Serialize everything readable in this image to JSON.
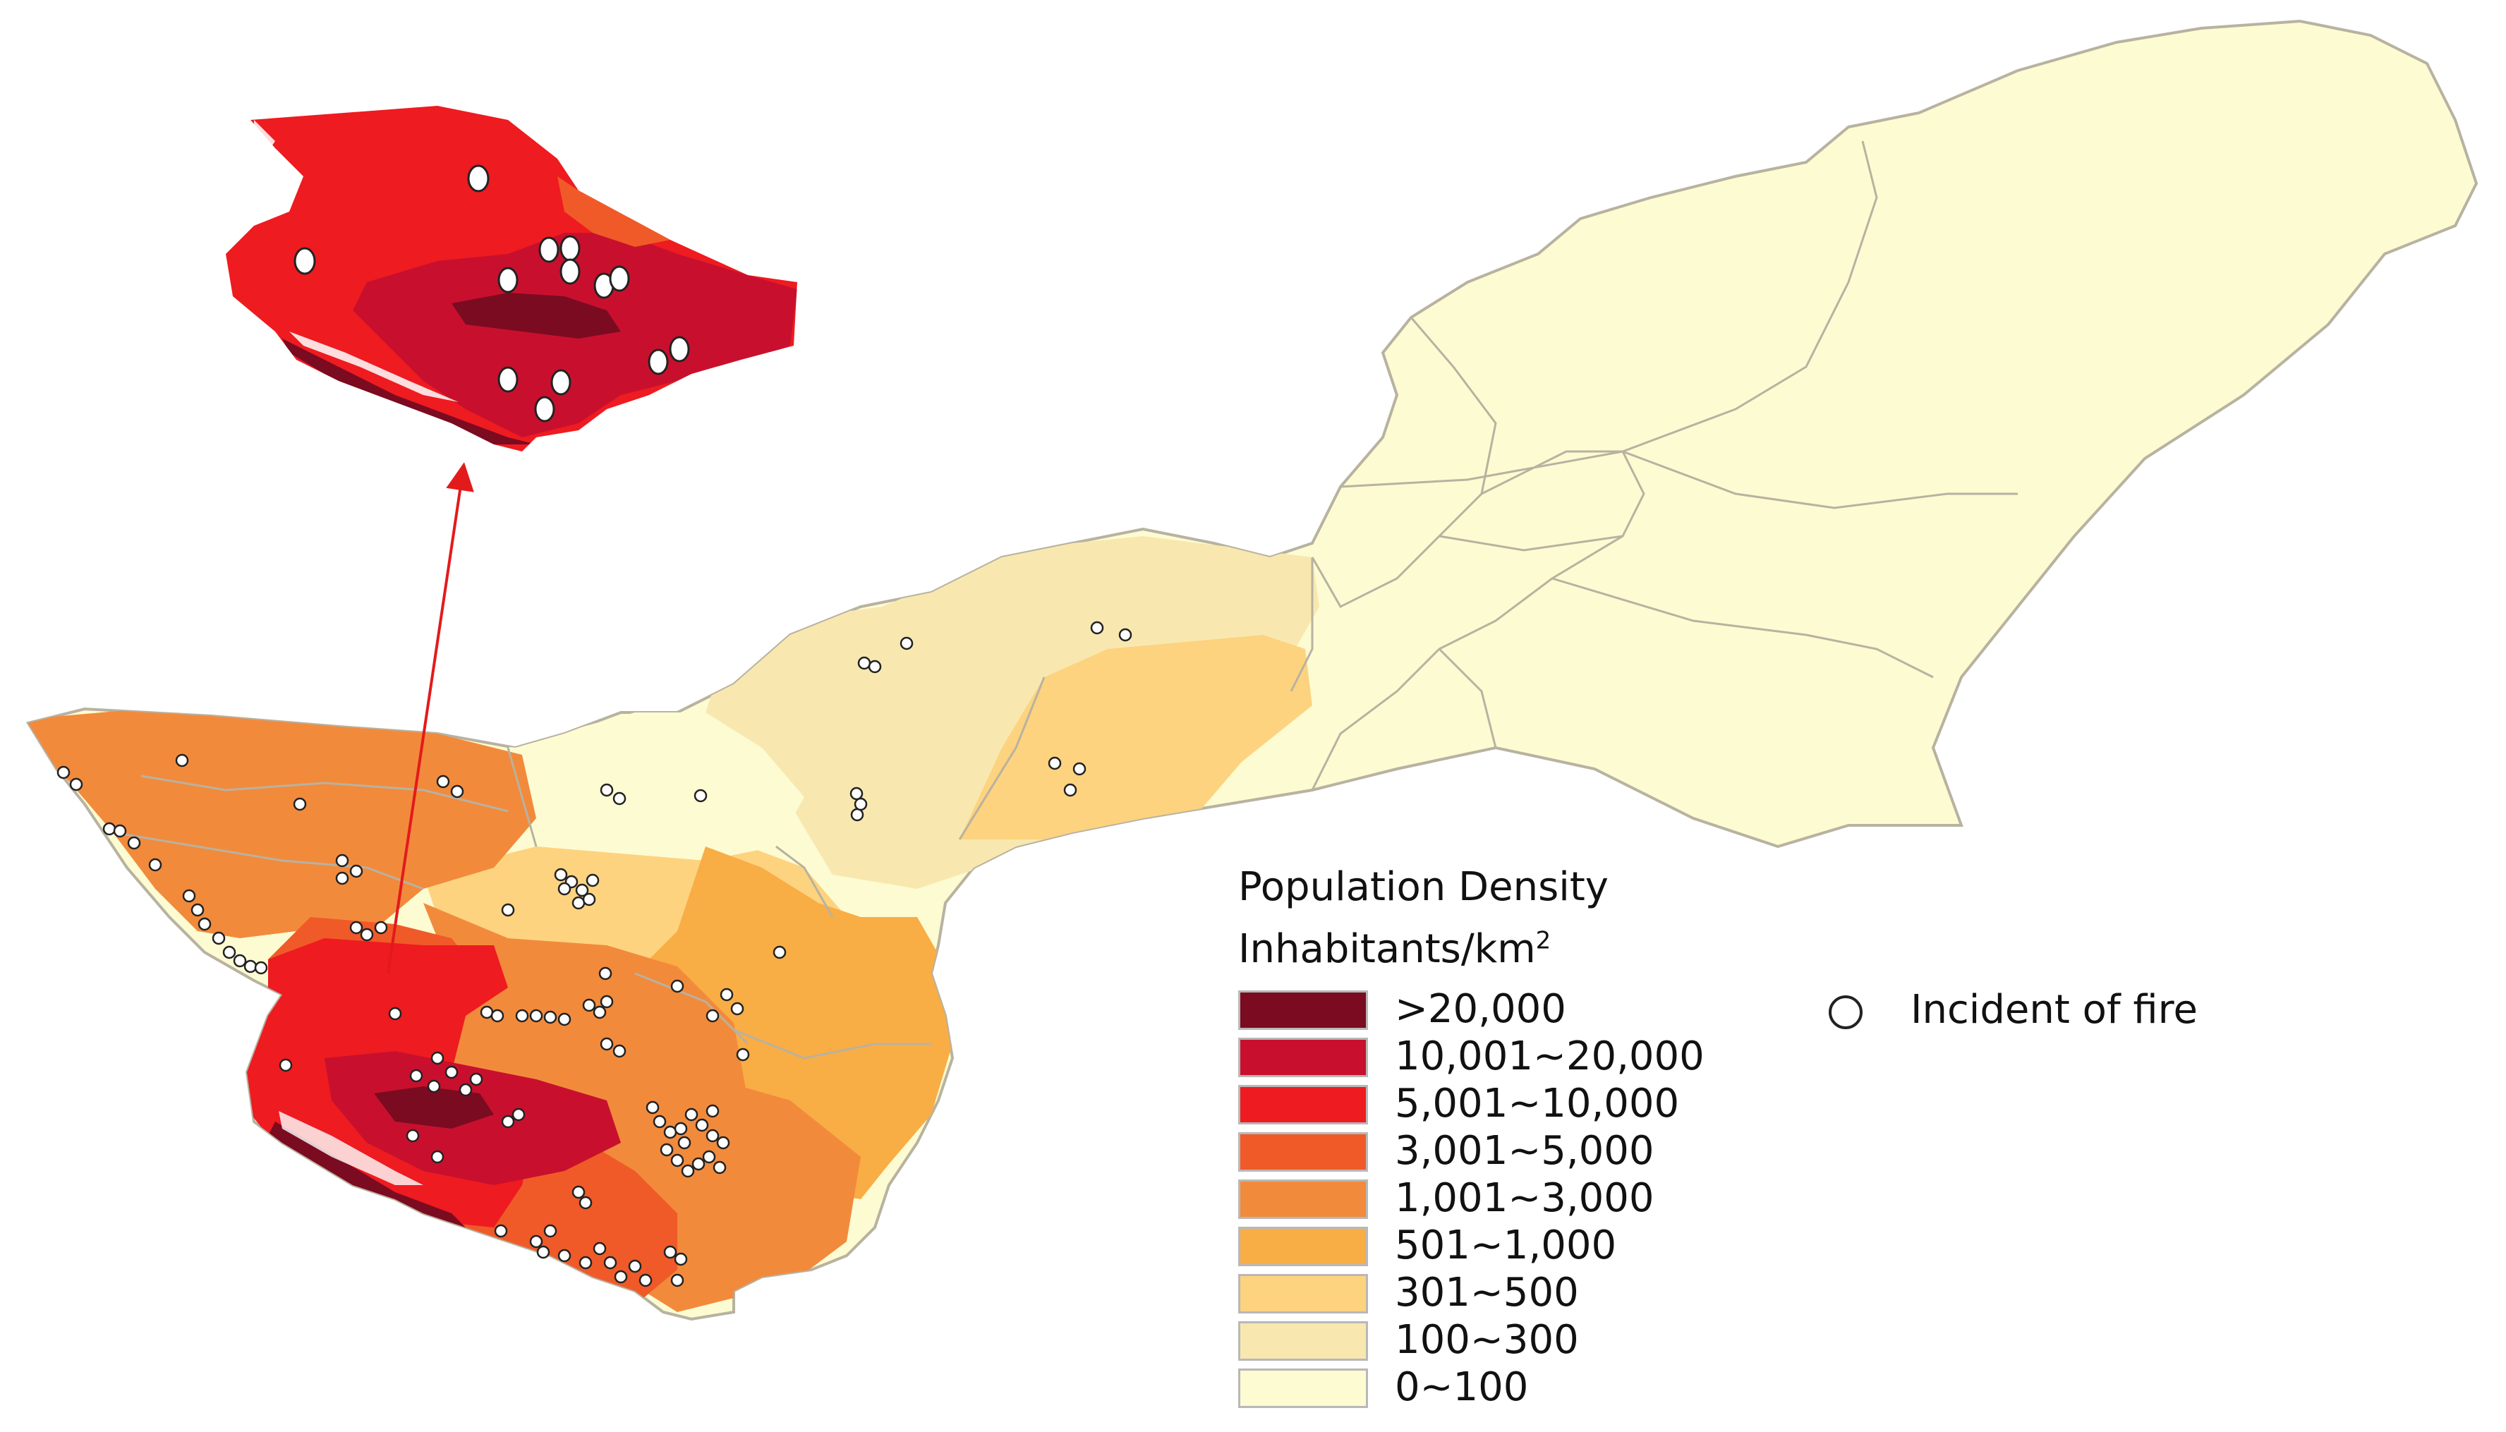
{
  "colors": {
    "d0": "#7b0b20",
    "d1": "#c8102e",
    "d2": "#ee1b20",
    "d3": "#f05a28",
    "d4": "#f28a3c",
    "d5": "#f9ad45",
    "d6": "#fdd37f",
    "d7": "#f8e8b0",
    "d8": "#fdfbd2",
    "border": "#b8b2a0",
    "arrow": "#e31a1c"
  },
  "legend": {
    "title": "Population Density",
    "unit_base": "Inhabitants/km",
    "unit_sup": "2",
    "classes": [
      {
        "label": ">20,000",
        "color": "#7b0b20"
      },
      {
        "label": "10,001~20,000",
        "color": "#c8102e"
      },
      {
        "label": "5,001~10,000",
        "color": "#ee1b20"
      },
      {
        "label": "3,001~5,000",
        "color": "#f05a28"
      },
      {
        "label": "1,001~3,000",
        "color": "#f28a3c"
      },
      {
        "label": "501~1,000",
        "color": "#f9ad45"
      },
      {
        "label": "301~500",
        "color": "#fdd37f"
      },
      {
        "label": "100~300",
        "color": "#f8e8b0"
      },
      {
        "label": "0~100",
        "color": "#fdfbd2"
      }
    ]
  },
  "fire_key": {
    "label": "Incident of fire"
  }
}
